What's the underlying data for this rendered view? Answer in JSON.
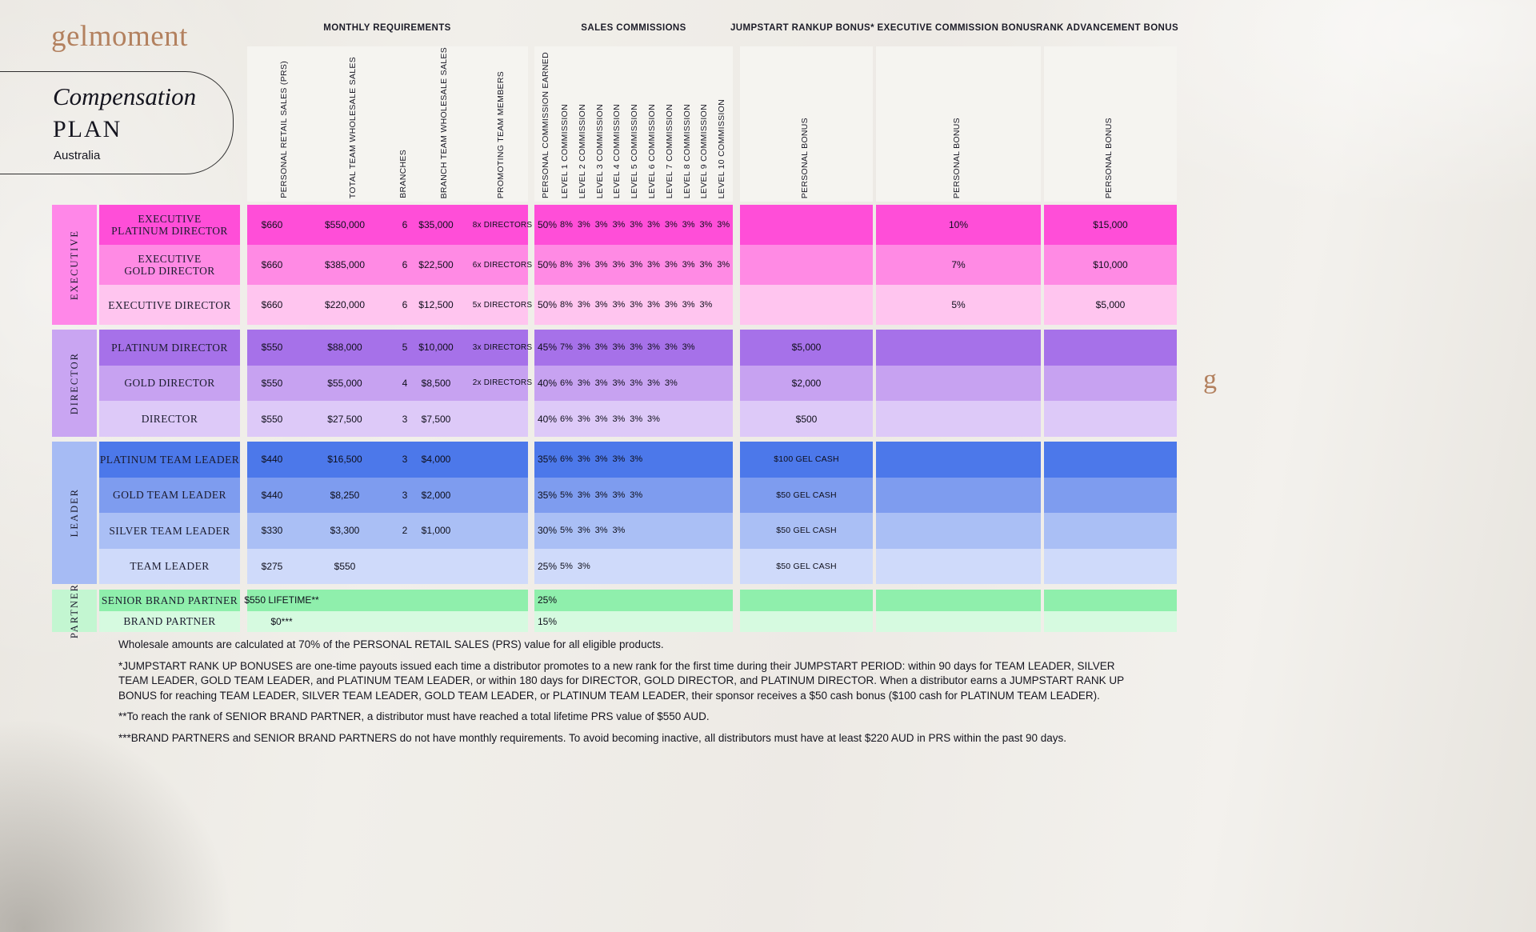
{
  "page": {
    "brand_wordmark": "gelmoment",
    "brand_mark": "g",
    "title_italic": "Compensation",
    "title_caps": "PLAN",
    "region": "Australia"
  },
  "column_groups": [
    "MONTHLY REQUIREMENTS",
    "SALES COMMISSIONS",
    "JUMPSTART RANKUP BONUS*",
    "EXECUTIVE COMMISSION BONUS",
    "RANK ADVANCEMENT BONUS"
  ],
  "monthly_column_headers": [
    "PERSONAL RETAIL SALES (PRS)",
    "TOTAL TEAM WHOLESALE SALES",
    "BRANCHES",
    "BRANCH TEAM WHOLESALE SALES",
    "PROMOTING TEAM MEMBERS"
  ],
  "sales_column_headers": [
    "PERSONAL COMMISSION EARNED",
    "LEVEL 1 COMMISSION",
    "LEVEL 2 COMMISSION",
    "LEVEL 3 COMMISSION",
    "LEVEL 4 COMMISSION",
    "LEVEL 5 COMMISSION",
    "LEVEL 6 COMMISSION",
    "LEVEL 7 COMMISSION",
    "LEVEL 8 COMMISSION",
    "LEVEL 9 COMMISSION",
    "LEVEL 10 COMMISSION"
  ],
  "bonus_column_headers": [
    "PERSONAL BONUS",
    "PERSONAL BONUS",
    "PERSONAL BONUS"
  ],
  "rank_groups": [
    {
      "label": "EXECUTIVE",
      "label_color": "#ff87e8",
      "rows": [
        {
          "name_lines": [
            "EXECUTIVE",
            "PLATINUM DIRECTOR"
          ],
          "color": "#ff4ed8",
          "prs": "$660",
          "total_team_wholesale": "$550,000",
          "branches": "6",
          "branch_team_wholesale": "$35,000",
          "promoting": "8x DIRECTORS",
          "personal_commission": "50%",
          "levels": [
            "8%",
            "3%",
            "3%",
            "3%",
            "3%",
            "3%",
            "3%",
            "3%",
            "3%",
            "3%"
          ],
          "jumpstart_bonus": "",
          "executive_commission_bonus": "10%",
          "rank_advancement_bonus": "$15,000"
        },
        {
          "name_lines": [
            "EXECUTIVE",
            "GOLD DIRECTOR"
          ],
          "color": "#ff8ae4",
          "prs": "$660",
          "total_team_wholesale": "$385,000",
          "branches": "6",
          "branch_team_wholesale": "$22,500",
          "promoting": "6x DIRECTORS",
          "personal_commission": "50%",
          "levels": [
            "8%",
            "3%",
            "3%",
            "3%",
            "3%",
            "3%",
            "3%",
            "3%",
            "3%",
            "3%"
          ],
          "jumpstart_bonus": "",
          "executive_commission_bonus": "7%",
          "rank_advancement_bonus": "$10,000"
        },
        {
          "name_lines": [
            "EXECUTIVE DIRECTOR"
          ],
          "color": "#ffc5ef",
          "prs": "$660",
          "total_team_wholesale": "$220,000",
          "branches": "6",
          "branch_team_wholesale": "$12,500",
          "promoting": "5x DIRECTORS",
          "personal_commission": "50%",
          "levels": [
            "8%",
            "3%",
            "3%",
            "3%",
            "3%",
            "3%",
            "3%",
            "3%",
            "3%"
          ],
          "jumpstart_bonus": "",
          "executive_commission_bonus": "5%",
          "rank_advancement_bonus": "$5,000"
        }
      ]
    },
    {
      "label": "DIRECTOR",
      "label_color": "#c9a5f2",
      "rows": [
        {
          "name_lines": [
            "PLATINUM DIRECTOR"
          ],
          "color": "#a671e9",
          "prs": "$550",
          "total_team_wholesale": "$88,000",
          "branches": "5",
          "branch_team_wholesale": "$10,000",
          "promoting": "3x DIRECTORS",
          "personal_commission": "45%",
          "levels": [
            "7%",
            "3%",
            "3%",
            "3%",
            "3%",
            "3%",
            "3%",
            "3%"
          ],
          "jumpstart_bonus": "$5,000",
          "executive_commission_bonus": "",
          "rank_advancement_bonus": ""
        },
        {
          "name_lines": [
            "GOLD DIRECTOR"
          ],
          "color": "#c7a2f1",
          "prs": "$550",
          "total_team_wholesale": "$55,000",
          "branches": "4",
          "branch_team_wholesale": "$8,500",
          "promoting": "2x DIRECTORS",
          "personal_commission": "40%",
          "levels": [
            "6%",
            "3%",
            "3%",
            "3%",
            "3%",
            "3%",
            "3%"
          ],
          "jumpstart_bonus": "$2,000",
          "executive_commission_bonus": "",
          "rank_advancement_bonus": ""
        },
        {
          "name_lines": [
            "DIRECTOR"
          ],
          "color": "#ddc9f8",
          "prs": "$550",
          "total_team_wholesale": "$27,500",
          "branches": "3",
          "branch_team_wholesale": "$7,500",
          "promoting": "",
          "personal_commission": "40%",
          "levels": [
            "6%",
            "3%",
            "3%",
            "3%",
            "3%",
            "3%"
          ],
          "jumpstart_bonus": "$500",
          "executive_commission_bonus": "",
          "rank_advancement_bonus": ""
        }
      ]
    },
    {
      "label": "LEADER",
      "label_color": "#a6bbf4",
      "rows": [
        {
          "name_lines": [
            "PLATINUM TEAM LEADER"
          ],
          "color": "#4c78ea",
          "prs": "$440",
          "total_team_wholesale": "$16,500",
          "branches": "3",
          "branch_team_wholesale": "$4,000",
          "promoting": "",
          "personal_commission": "35%",
          "levels": [
            "6%",
            "3%",
            "3%",
            "3%",
            "3%"
          ],
          "jumpstart_bonus": "$100 GEL CASH",
          "executive_commission_bonus": "",
          "rank_advancement_bonus": ""
        },
        {
          "name_lines": [
            "GOLD TEAM LEADER"
          ],
          "color": "#7e9cef",
          "prs": "$440",
          "total_team_wholesale": "$8,250",
          "branches": "3",
          "branch_team_wholesale": "$2,000",
          "promoting": "",
          "personal_commission": "35%",
          "levels": [
            "5%",
            "3%",
            "3%",
            "3%",
            "3%"
          ],
          "jumpstart_bonus": "$50 GEL CASH",
          "executive_commission_bonus": "",
          "rank_advancement_bonus": ""
        },
        {
          "name_lines": [
            "SILVER TEAM LEADER"
          ],
          "color": "#aabff5",
          "prs": "$330",
          "total_team_wholesale": "$3,300",
          "branches": "2",
          "branch_team_wholesale": "$1,000",
          "promoting": "",
          "personal_commission": "30%",
          "levels": [
            "5%",
            "3%",
            "3%",
            "3%"
          ],
          "jumpstart_bonus": "$50 GEL CASH",
          "executive_commission_bonus": "",
          "rank_advancement_bonus": ""
        },
        {
          "name_lines": [
            "TEAM LEADER"
          ],
          "color": "#cfdafa",
          "prs": "$275",
          "total_team_wholesale": "$550",
          "branches": "",
          "branch_team_wholesale": "",
          "promoting": "",
          "personal_commission": "25%",
          "levels": [
            "5%",
            "3%"
          ],
          "jumpstart_bonus": "$50 GEL CASH",
          "executive_commission_bonus": "",
          "rank_advancement_bonus": ""
        }
      ]
    },
    {
      "label": "PARTNER",
      "label_color": "#c3f6d1",
      "rows": [
        {
          "name_lines": [
            "SENIOR BRAND PARTNER"
          ],
          "color": "#8fefac",
          "prs": "$550 LIFETIME**",
          "prs_wide": true,
          "total_team_wholesale": "",
          "branches": "",
          "branch_team_wholesale": "",
          "promoting": "",
          "personal_commission": "25%",
          "levels": [],
          "jumpstart_bonus": "",
          "executive_commission_bonus": "",
          "rank_advancement_bonus": ""
        },
        {
          "name_lines": [
            "BRAND PARTNER"
          ],
          "color": "#d6fae0",
          "prs": "$0***",
          "prs_wide": true,
          "total_team_wholesale": "",
          "branches": "",
          "branch_team_wholesale": "",
          "promoting": "",
          "personal_commission": "15%",
          "levels": [],
          "jumpstart_bonus": "",
          "executive_commission_bonus": "",
          "rank_advancement_bonus": ""
        }
      ]
    }
  ],
  "footnotes": [
    "Wholesale amounts are calculated at 70% of the PERSONAL RETAIL SALES (PRS) value for all eligible products.",
    "*JUMPSTART RANK UP BONUSES are one-time payouts issued each time a distributor promotes to a new rank for the first time during their JUMPSTART PERIOD: within 90 days for TEAM LEADER, SILVER TEAM LEADER, GOLD TEAM LEADER, and PLATINUM TEAM LEADER, or within 180 days for DIRECTOR, GOLD DIRECTOR, and PLATINUM DIRECTOR. When a distributor earns a JUMPSTART RANK UP BONUS for reaching TEAM LEADER, SILVER TEAM LEADER, GOLD TEAM LEADER, or PLATINUM TEAM LEADER, their sponsor receives a $50 cash bonus ($100 cash for PLATINUM TEAM LEADER).",
    "**To reach the rank of SENIOR BRAND PARTNER, a distributor must have reached a total lifetime PRS value of $550 AUD.",
    "***BRAND PARTNERS and SENIOR BRAND PARTNERS do not have monthly requirements. To avoid becoming inactive, all distributors must have at least  $220 AUD in PRS within the past 90 days."
  ]
}
